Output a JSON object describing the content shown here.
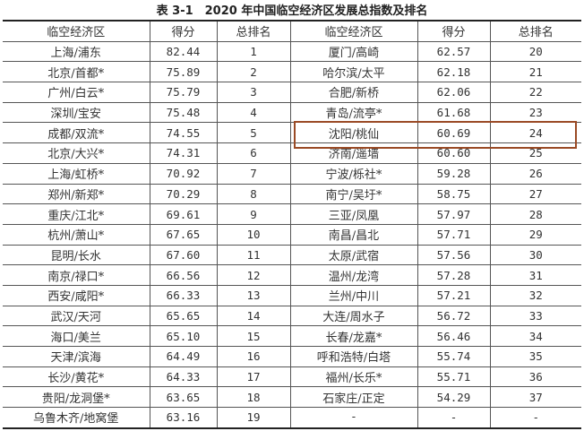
{
  "title": "表 3-1　2020 年中国临空经济区发展总指数及排名",
  "headers": [
    "临空经济区",
    "得分",
    "总排名",
    "临空经济区",
    "得分",
    "总排名"
  ],
  "rows": [
    [
      "上海/浦东",
      "82.44",
      "1",
      "厦门/高崎",
      "62.57",
      "20"
    ],
    [
      "北京/首都*",
      "75.89",
      "2",
      "哈尔滨/太平",
      "62.18",
      "21"
    ],
    [
      "广州/白云*",
      "75.79",
      "3",
      "合肥/新桥",
      "62.06",
      "22"
    ],
    [
      "深圳/宝安",
      "75.48",
      "4",
      "青岛/流亭*",
      "61.68",
      "23"
    ],
    [
      "成都/双流*",
      "74.55",
      "5",
      "沈阳/桃仙",
      "60.69",
      "24"
    ],
    [
      "北京/大兴*",
      "74.31",
      "6",
      "济南/遥墙",
      "60.60",
      "25"
    ],
    [
      "上海/虹桥*",
      "70.92",
      "7",
      "宁波/栎社*",
      "59.28",
      "26"
    ],
    [
      "郑州/新郑*",
      "70.29",
      "8",
      "南宁/吴圩*",
      "58.75",
      "27"
    ],
    [
      "重庆/江北*",
      "69.61",
      "9",
      "三亚/凤凰",
      "57.97",
      "28"
    ],
    [
      "杭州/萧山*",
      "67.65",
      "10",
      "南昌/昌北",
      "57.71",
      "29"
    ],
    [
      "昆明/长水",
      "67.60",
      "11",
      "太原/武宿",
      "57.56",
      "30"
    ],
    [
      "南京/禄口*",
      "66.56",
      "12",
      "温州/龙湾",
      "57.28",
      "31"
    ],
    [
      "西安/咸阳*",
      "66.33",
      "13",
      "兰州/中川",
      "57.21",
      "32"
    ],
    [
      "武汉/天河",
      "65.65",
      "14",
      "大连/周水子",
      "56.72",
      "33"
    ],
    [
      "海口/美兰",
      "65.10",
      "15",
      "长春/龙嘉*",
      "56.46",
      "34"
    ],
    [
      "天津/滨海",
      "64.49",
      "16",
      "呼和浩特/白塔",
      "55.74",
      "35"
    ],
    [
      "长沙/黄花*",
      "64.33",
      "17",
      "福州/长乐*",
      "55.71",
      "36"
    ],
    [
      "贵阳/龙洞堡*",
      "63.65",
      "18",
      "石家庄/正定",
      "54.29",
      "37"
    ],
    [
      "乌鲁木齐/地窝堡",
      "63.16",
      "19",
      "-",
      "-",
      "-"
    ]
  ],
  "highlight_color": "#9a4a25"
}
